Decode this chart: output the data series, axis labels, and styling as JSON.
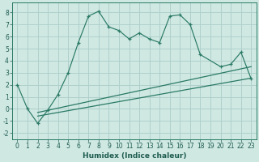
{
  "xlabel": "Humidex (Indice chaleur)",
  "background_color": "#cfe8e2",
  "grid_color": "#b0d0cc",
  "line_color": "#2a7a65",
  "xlim": [
    -0.5,
    23.5
  ],
  "ylim": [
    -2.5,
    8.8
  ],
  "xticks": [
    0,
    1,
    2,
    3,
    4,
    5,
    6,
    7,
    8,
    9,
    10,
    11,
    12,
    13,
    14,
    15,
    16,
    17,
    18,
    19,
    20,
    21,
    22,
    23
  ],
  "yticks": [
    -2,
    -1,
    0,
    1,
    2,
    3,
    4,
    5,
    6,
    7,
    8
  ],
  "main_x": [
    0,
    1,
    2,
    3,
    4,
    5,
    6,
    7,
    8,
    9,
    10,
    11,
    12,
    13,
    14,
    15,
    16,
    17,
    18,
    20,
    21,
    22,
    23
  ],
  "main_y": [
    2.0,
    0.0,
    -1.2,
    -0.1,
    1.2,
    3.0,
    5.5,
    7.7,
    8.1,
    6.8,
    6.5,
    5.8,
    6.3,
    5.8,
    5.5,
    7.7,
    7.8,
    7.0,
    4.5,
    3.5,
    3.7,
    4.7,
    2.5
  ],
  "line1_x": [
    2,
    23
  ],
  "line1_y": [
    -0.6,
    2.55
  ],
  "line2_x": [
    2,
    23
  ],
  "line2_y": [
    -0.3,
    3.5
  ],
  "fontsize_label": 6.5,
  "fontsize_tick": 5.5
}
